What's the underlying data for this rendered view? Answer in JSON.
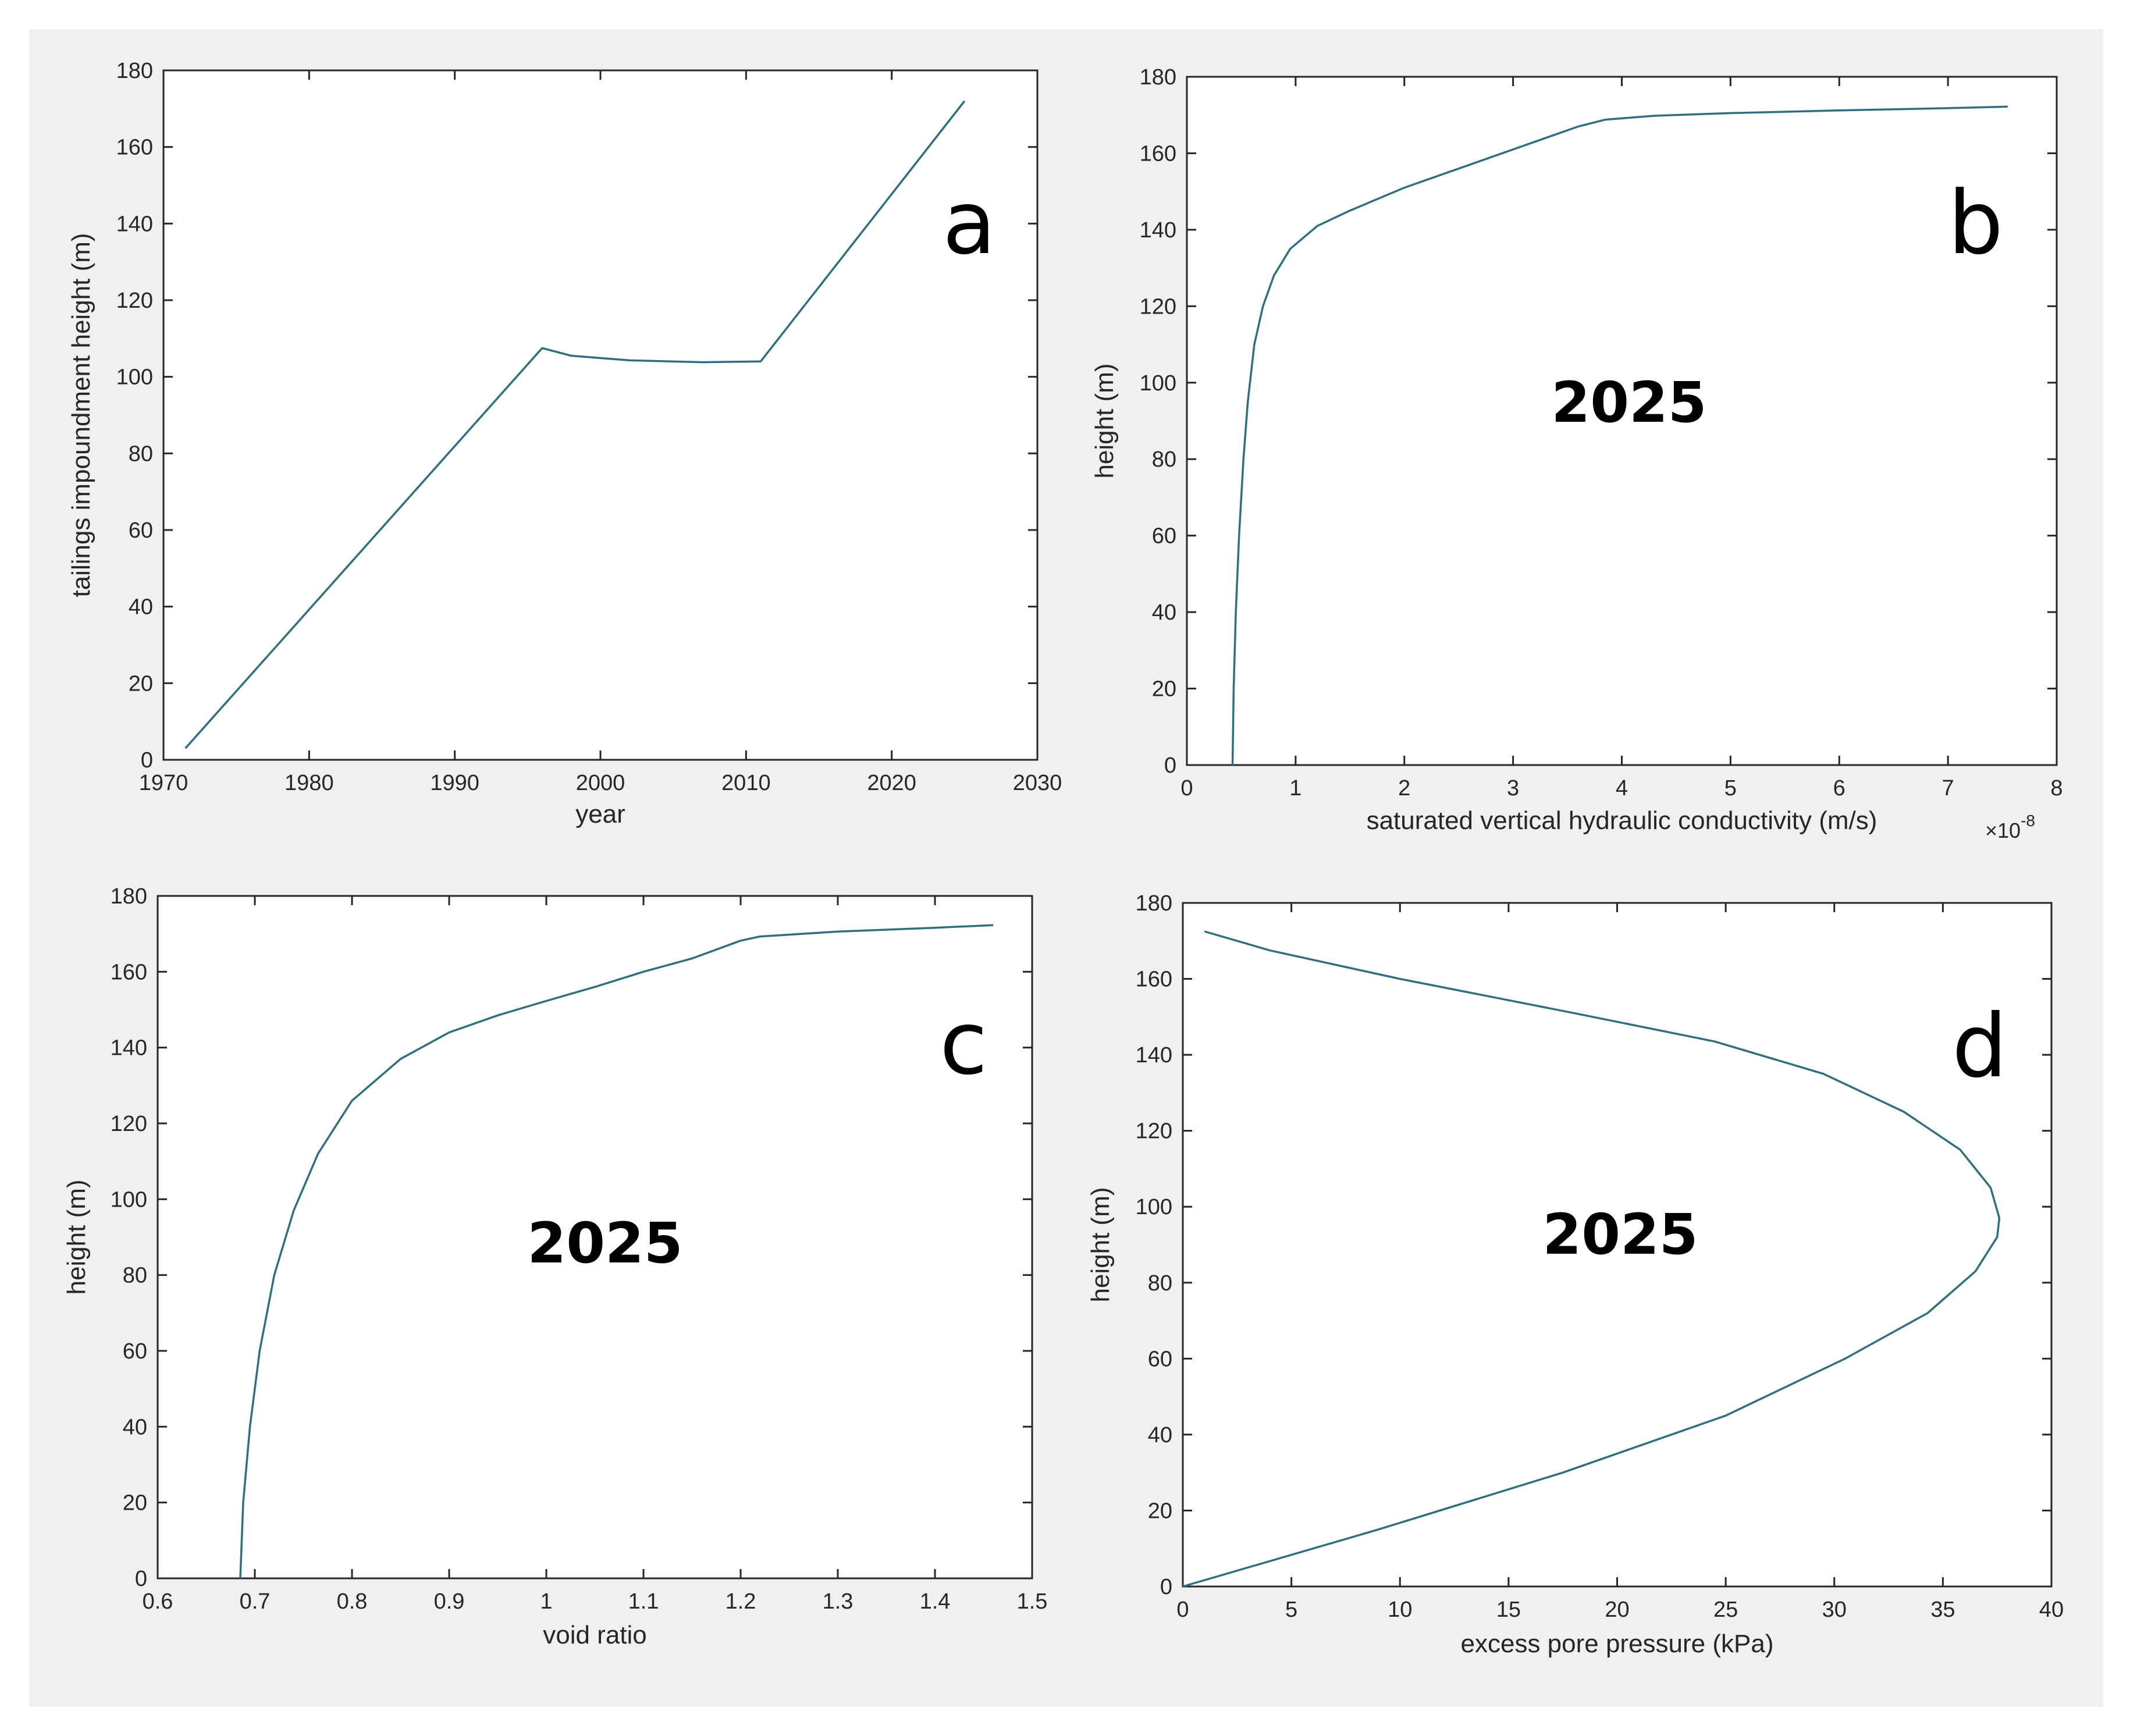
{
  "chart_data": [
    {
      "id": "a",
      "type": "line",
      "panel_letter": "a",
      "annotation": "",
      "xlabel": "year",
      "ylabel": "tailings impoundment height (m)",
      "x_exponent": "",
      "xlim": [
        1970,
        2030
      ],
      "ylim": [
        0,
        180
      ],
      "xticks": [
        1970,
        1980,
        1990,
        2000,
        2010,
        2020,
        2030
      ],
      "yticks": [
        0,
        20,
        40,
        60,
        80,
        100,
        120,
        140,
        160,
        180
      ],
      "grid": false,
      "line_color": "#2f6f7e",
      "series": [
        {
          "x": [
            1971.5,
            1996,
            1998,
            2002,
            2007,
            2011,
            2025
          ],
          "y": [
            3,
            107.5,
            105.5,
            104.3,
            103.8,
            104,
            172
          ]
        }
      ]
    },
    {
      "id": "b",
      "type": "line",
      "panel_letter": "b",
      "annotation": "2025",
      "xlabel": "saturated vertical hydraulic conductivity (m/s)",
      "ylabel": "height (m)",
      "x_exponent": "-8",
      "xlim": [
        0,
        8
      ],
      "ylim": [
        0,
        180
      ],
      "xticks": [
        0,
        1,
        2,
        3,
        4,
        5,
        6,
        7,
        8
      ],
      "yticks": [
        0,
        20,
        40,
        60,
        80,
        100,
        120,
        140,
        160,
        180
      ],
      "grid": false,
      "line_color": "#2f6f7e",
      "series": [
        {
          "x": [
            0.42,
            0.43,
            0.45,
            0.48,
            0.52,
            0.56,
            0.62,
            0.7,
            0.8,
            0.95,
            1.2,
            1.5,
            2.0,
            2.6,
            3.2,
            3.6,
            3.85,
            4.3,
            5.0,
            6.0,
            7.0,
            7.55
          ],
          "y": [
            0,
            20,
            40,
            60,
            80,
            95,
            110,
            120,
            128,
            135,
            141,
            145,
            151,
            157,
            163,
            167,
            168.8,
            169.8,
            170.5,
            171.2,
            171.8,
            172.2
          ]
        }
      ]
    },
    {
      "id": "c",
      "type": "line",
      "panel_letter": "c",
      "annotation": "2025",
      "xlabel": "void ratio",
      "ylabel": "height (m)",
      "x_exponent": "",
      "xlim": [
        0.6,
        1.5
      ],
      "ylim": [
        0,
        180
      ],
      "xticks": [
        0.6,
        0.7,
        0.8,
        0.9,
        1,
        1.1,
        1.2,
        1.3,
        1.4,
        1.5
      ],
      "yticks": [
        0,
        20,
        40,
        60,
        80,
        100,
        120,
        140,
        160,
        180
      ],
      "grid": false,
      "line_color": "#2f6f7e",
      "series": [
        {
          "x": [
            0.685,
            0.688,
            0.695,
            0.705,
            0.72,
            0.74,
            0.765,
            0.8,
            0.85,
            0.9,
            0.95,
            1.0,
            1.05,
            1.1,
            1.15,
            1.2,
            1.22,
            1.3,
            1.4,
            1.46
          ],
          "y": [
            0,
            20,
            40,
            60,
            80,
            97,
            112,
            126,
            137,
            144,
            148.5,
            152.3,
            156,
            160,
            163.5,
            168.2,
            169.3,
            170.6,
            171.6,
            172.3
          ]
        }
      ]
    },
    {
      "id": "d",
      "type": "line",
      "panel_letter": "d",
      "annotation": "2025",
      "xlabel": "excess pore pressure (kPa)",
      "ylabel": "height (m)",
      "x_exponent": "",
      "xlim": [
        0,
        40
      ],
      "ylim": [
        0,
        180
      ],
      "xticks": [
        0,
        5,
        10,
        15,
        20,
        25,
        30,
        35,
        40
      ],
      "yticks": [
        0,
        20,
        40,
        60,
        80,
        100,
        120,
        140,
        160,
        180
      ],
      "grid": false,
      "line_color": "#2f6f7e",
      "series": [
        {
          "x": [
            0,
            9,
            17.5,
            25,
            30.5,
            34.3,
            36.5,
            37.5,
            37.6,
            37.2,
            35.8,
            33.2,
            29.5,
            24.5,
            18,
            10,
            4,
            1
          ],
          "y": [
            0,
            15,
            30,
            45,
            60,
            72,
            83,
            92,
            97,
            105,
            115,
            125,
            135,
            143.5,
            151,
            160,
            167.5,
            172.5
          ]
        }
      ]
    }
  ]
}
